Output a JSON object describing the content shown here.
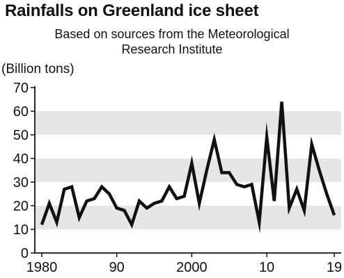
{
  "chart_data": {
    "type": "line",
    "title": "Rainfalls on Greenland ice sheet",
    "subtitle_lines": [
      "Based on sources from the Meteorological",
      "Research Institute"
    ],
    "unit_label": "(Billion tons)",
    "xlabel": "",
    "ylabel": "",
    "xlim": [
      1980,
      2019
    ],
    "ylim": [
      0,
      70
    ],
    "y_ticks": [
      0,
      10,
      20,
      30,
      40,
      50,
      60,
      70
    ],
    "x_ticks": [
      1980,
      1990,
      2000,
      2010,
      2019
    ],
    "x_tick_labels": [
      "1980",
      "90",
      "2000",
      "10",
      "19"
    ],
    "grid": "alternating horizontal bands",
    "band_color": "#e6e6e6",
    "line_color": "#111111",
    "series": [
      {
        "x": [
          1980,
          1981,
          1982,
          1983,
          1984,
          1985,
          1986,
          1987,
          1988,
          1989,
          1990,
          1991,
          1992,
          1993,
          1994,
          1995,
          1996,
          1997,
          1998,
          1999,
          2000,
          2001,
          2002,
          2003,
          2004,
          2005,
          2006,
          2007,
          2008,
          2009,
          2010,
          2011,
          2012,
          2013,
          2014,
          2015,
          2016,
          2017,
          2018,
          2019
        ],
        "values": [
          12,
          21,
          13,
          27,
          28,
          15,
          22,
          23,
          28,
          25,
          19,
          18,
          12,
          22,
          19,
          21,
          22,
          28,
          23,
          24,
          38,
          21,
          35,
          48,
          34,
          34,
          29,
          28,
          29,
          13,
          49,
          22,
          64,
          19,
          27,
          18,
          46,
          35,
          25,
          16
        ]
      }
    ]
  }
}
